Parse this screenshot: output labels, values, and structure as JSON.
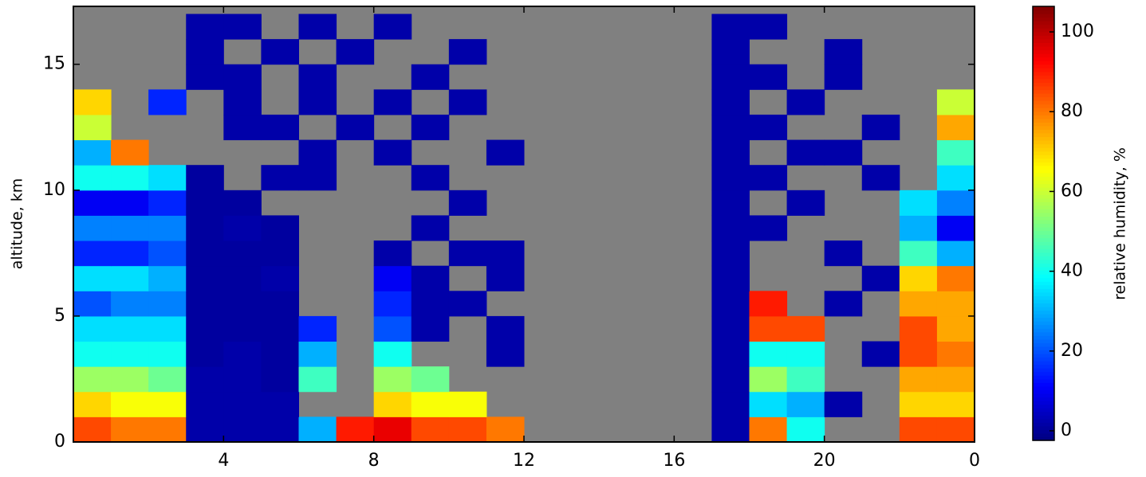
{
  "chart_data": {
    "type": "heatmap",
    "ylabel": "altitude, km",
    "colorbar_label": "relative humidity, %",
    "colormap": "jet",
    "missing_color": "#808080",
    "xlim": [
      0,
      24
    ],
    "xticks": [
      4,
      8,
      12,
      16,
      20,
      {
        "value": 24,
        "label": "0"
      }
    ],
    "ylim": [
      0,
      17.3
    ],
    "yticks": [
      0,
      5,
      10,
      15
    ],
    "clim": [
      -2.4,
      106.4
    ],
    "cticks": [
      0,
      20,
      40,
      60,
      80,
      100
    ],
    "x_bins": [
      0,
      1,
      2,
      3,
      4,
      5,
      6,
      7,
      8,
      9,
      10,
      11,
      12,
      13,
      14,
      15,
      16,
      17,
      18,
      19,
      20,
      21,
      22,
      23,
      24
    ],
    "y_bins": [
      0,
      1,
      2,
      3,
      4,
      5,
      6,
      7,
      8,
      9,
      10,
      11,
      12,
      13,
      14,
      15,
      16,
      17
    ],
    "values": [
      [
        85,
        80,
        80,
        2,
        2,
        2,
        30,
        90,
        95,
        85,
        85,
        80,
        null,
        null,
        null,
        null,
        null,
        2,
        80,
        40,
        null,
        null,
        85,
        85
      ],
      [
        70,
        65,
        65,
        2,
        2,
        2,
        null,
        null,
        70,
        65,
        65,
        null,
        null,
        null,
        null,
        null,
        null,
        2,
        35,
        30,
        2,
        null,
        70,
        70
      ],
      [
        55,
        55,
        50,
        2,
        2,
        1,
        45,
        null,
        55,
        50,
        null,
        null,
        null,
        null,
        null,
        null,
        null,
        2,
        55,
        45,
        null,
        null,
        75,
        75
      ],
      [
        40,
        40,
        40,
        1,
        2,
        1,
        30,
        null,
        40,
        null,
        null,
        2,
        null,
        null,
        null,
        null,
        null,
        2,
        40,
        40,
        null,
        2,
        85,
        80
      ],
      [
        35,
        35,
        35,
        1,
        1,
        1,
        15,
        null,
        20,
        2,
        null,
        2,
        null,
        null,
        null,
        null,
        null,
        2,
        85,
        85,
        null,
        null,
        85,
        75
      ],
      [
        20,
        25,
        25,
        1,
        1,
        1,
        null,
        null,
        15,
        2,
        2,
        null,
        null,
        null,
        null,
        null,
        null,
        2,
        90,
        null,
        2,
        null,
        75,
        75
      ],
      [
        35,
        35,
        30,
        1,
        1,
        2,
        null,
        null,
        10,
        2,
        null,
        2,
        null,
        null,
        null,
        null,
        null,
        2,
        null,
        null,
        null,
        2,
        70,
        80
      ],
      [
        15,
        15,
        20,
        1,
        1,
        1,
        null,
        null,
        2,
        null,
        2,
        2,
        null,
        null,
        null,
        null,
        null,
        2,
        null,
        null,
        2,
        null,
        45,
        30
      ],
      [
        25,
        25,
        25,
        1,
        2,
        1,
        null,
        null,
        null,
        2,
        null,
        null,
        null,
        null,
        null,
        null,
        null,
        2,
        2,
        null,
        null,
        null,
        30,
        10
      ],
      [
        10,
        10,
        15,
        1,
        1,
        null,
        null,
        null,
        null,
        null,
        2,
        null,
        null,
        null,
        null,
        null,
        null,
        2,
        null,
        2,
        null,
        null,
        35,
        25
      ],
      [
        40,
        40,
        35,
        1,
        null,
        2,
        2,
        null,
        null,
        2,
        null,
        null,
        null,
        null,
        null,
        null,
        null,
        2,
        2,
        null,
        null,
        2,
        null,
        35
      ],
      [
        30,
        80,
        null,
        null,
        null,
        null,
        2,
        null,
        2,
        null,
        null,
        2,
        null,
        null,
        null,
        null,
        null,
        2,
        null,
        2,
        2,
        null,
        null,
        45
      ],
      [
        60,
        null,
        null,
        null,
        2,
        2,
        null,
        2,
        null,
        2,
        null,
        null,
        null,
        null,
        null,
        null,
        null,
        2,
        2,
        null,
        null,
        2,
        null,
        75
      ],
      [
        70,
        null,
        15,
        null,
        2,
        null,
        2,
        null,
        2,
        null,
        2,
        null,
        null,
        null,
        null,
        null,
        null,
        2,
        null,
        2,
        null,
        null,
        null,
        60
      ],
      [
        null,
        null,
        null,
        2,
        2,
        null,
        2,
        null,
        null,
        2,
        null,
        null,
        null,
        null,
        null,
        null,
        null,
        2,
        2,
        null,
        2,
        null,
        null,
        null
      ],
      [
        null,
        null,
        null,
        2,
        null,
        2,
        null,
        2,
        null,
        null,
        2,
        null,
        null,
        null,
        null,
        null,
        null,
        2,
        null,
        null,
        2,
        null,
        null,
        null
      ],
      [
        null,
        null,
        null,
        2,
        2,
        null,
        2,
        null,
        2,
        null,
        null,
        null,
        null,
        null,
        null,
        null,
        null,
        2,
        2,
        null,
        null,
        null,
        null,
        null
      ]
    ]
  }
}
